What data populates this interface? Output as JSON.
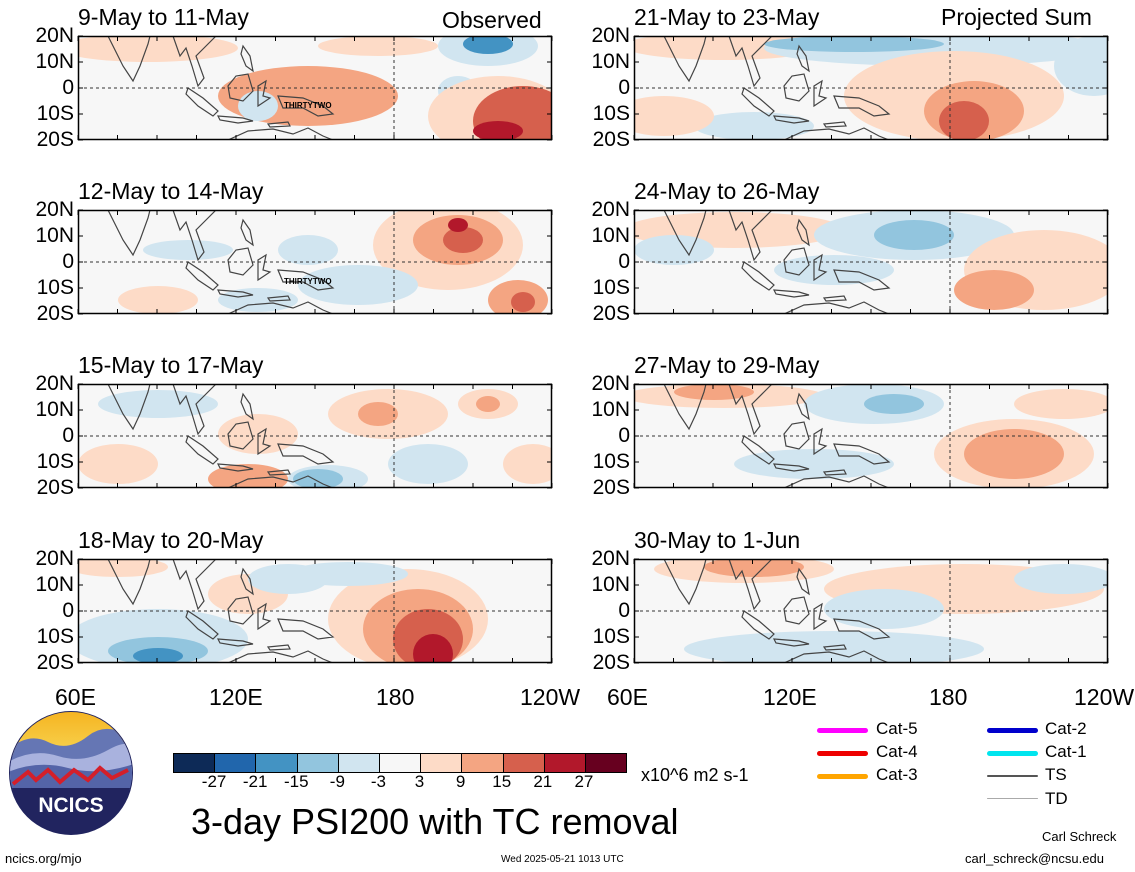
{
  "panels": [
    {
      "title": "9-May to 11-May",
      "tag": "Observed",
      "tc_label": "THIRTYTWO"
    },
    {
      "title": "21-May to 23-May",
      "tag": "Projected Sum",
      "tc_label": ""
    },
    {
      "title": "12-May to 14-May",
      "tag": "",
      "tc_label": "THIRTYTWO"
    },
    {
      "title": "24-May to 26-May",
      "tag": "",
      "tc_label": ""
    },
    {
      "title": "15-May to 17-May",
      "tag": "",
      "tc_label": ""
    },
    {
      "title": "27-May to 29-May",
      "tag": "",
      "tc_label": ""
    },
    {
      "title": "18-May to 20-May",
      "tag": "",
      "tc_label": ""
    },
    {
      "title": "30-May to 1-Jun",
      "tag": "",
      "tc_label": ""
    }
  ],
  "lat_labels": [
    "20N",
    "10N",
    "0",
    "10S",
    "20S"
  ],
  "lon_labels": [
    "60E",
    "120E",
    "180",
    "120W"
  ],
  "colorbar": {
    "colors": [
      "#0d2a57",
      "#2166ac",
      "#4393c3",
      "#92c5de",
      "#d1e5f0",
      "#f7f7f7",
      "#fddbc7",
      "#f4a582",
      "#d6604d",
      "#b2182b",
      "#67001f"
    ],
    "ticks": [
      "-27",
      "-21",
      "-15",
      "-9",
      "-3",
      "3",
      "9",
      "15",
      "21",
      "27"
    ],
    "units": "x10^6 m2 s-1"
  },
  "main_title": "3-day PSI200 with TC removal",
  "logo_text": "NCICS",
  "legend": [
    {
      "label": "Cat-5",
      "color": "#ff00ff"
    },
    {
      "label": "Cat-4",
      "color": "#ee0000"
    },
    {
      "label": "Cat-3",
      "color": "#ffa500"
    },
    {
      "label": "Cat-2",
      "color": "#0000cc"
    },
    {
      "label": "Cat-1",
      "color": "#00e5ee"
    },
    {
      "label": "TS",
      "color": "#555555"
    },
    {
      "label": "TD",
      "color": "#aaaaaa"
    }
  ],
  "footer": {
    "url": "ncics.org/mjo",
    "timestamp": "Wed 2025-05-21 1013 UTC",
    "author": "Carl Schreck",
    "email": "carl_schreck@ncsu.edu"
  }
}
